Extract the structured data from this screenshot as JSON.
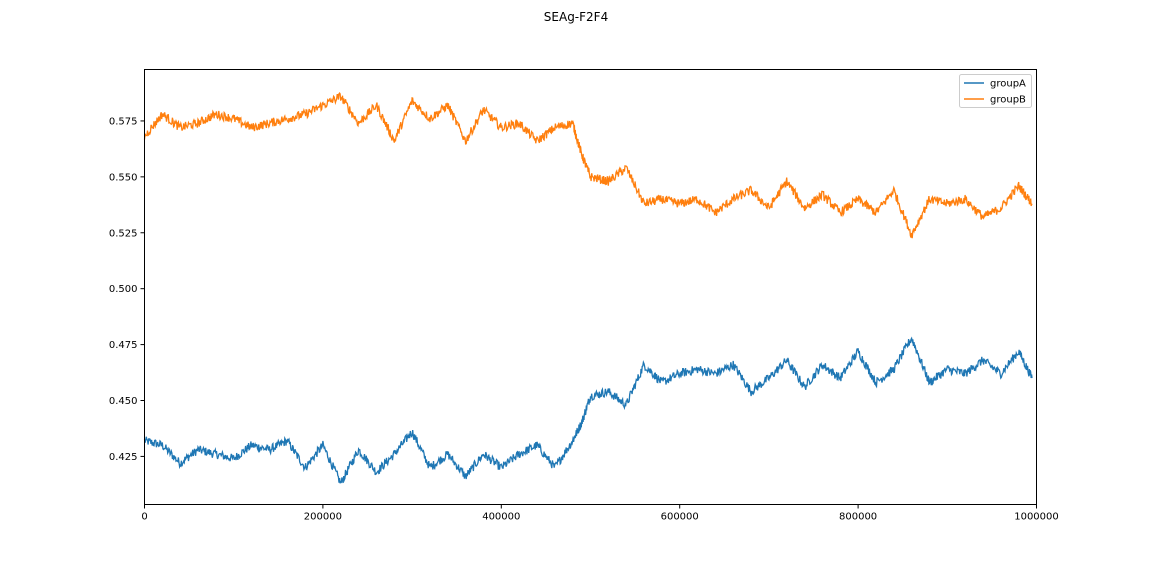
{
  "chart_data": {
    "type": "line",
    "title": "SEAg-F2F4",
    "xlabel": "",
    "ylabel": "",
    "xlim": [
      0,
      1000000
    ],
    "ylim": [
      0.4035,
      0.598
    ],
    "xticks": [
      0,
      200000,
      400000,
      600000,
      800000,
      1000000
    ],
    "xtick_labels": [
      "0",
      "200000",
      "400000",
      "600000",
      "800000",
      "1000000"
    ],
    "yticks": [
      0.425,
      0.45,
      0.475,
      0.5,
      0.525,
      0.55,
      0.575
    ],
    "ytick_labels": [
      "0.425",
      "0.450",
      "0.475",
      "0.500",
      "0.525",
      "0.550",
      "0.575"
    ],
    "grid": false,
    "legend_position": "upper-right",
    "series": [
      {
        "name": "groupA",
        "color": "#1f77b4",
        "x": [
          0,
          20000,
          40000,
          60000,
          80000,
          100000,
          120000,
          140000,
          160000,
          180000,
          200000,
          220000,
          240000,
          260000,
          280000,
          300000,
          320000,
          340000,
          360000,
          380000,
          400000,
          420000,
          440000,
          460000,
          480000,
          490000,
          500000,
          520000,
          540000,
          560000,
          580000,
          600000,
          620000,
          640000,
          660000,
          680000,
          700000,
          720000,
          740000,
          760000,
          780000,
          800000,
          820000,
          840000,
          860000,
          880000,
          900000,
          920000,
          940000,
          960000,
          980000,
          995000
        ],
        "y": [
          0.432,
          0.43,
          0.422,
          0.428,
          0.426,
          0.424,
          0.43,
          0.428,
          0.432,
          0.42,
          0.43,
          0.413,
          0.428,
          0.418,
          0.426,
          0.436,
          0.42,
          0.426,
          0.416,
          0.426,
          0.42,
          0.426,
          0.43,
          0.42,
          0.432,
          0.44,
          0.452,
          0.454,
          0.448,
          0.466,
          0.458,
          0.462,
          0.464,
          0.462,
          0.466,
          0.454,
          0.46,
          0.468,
          0.456,
          0.466,
          0.46,
          0.472,
          0.458,
          0.464,
          0.478,
          0.458,
          0.464,
          0.462,
          0.468,
          0.462,
          0.472,
          0.46
        ]
      },
      {
        "name": "groupB",
        "color": "#ff7f0e",
        "x": [
          0,
          20000,
          40000,
          60000,
          80000,
          100000,
          120000,
          140000,
          160000,
          180000,
          200000,
          220000,
          240000,
          260000,
          280000,
          300000,
          320000,
          340000,
          360000,
          380000,
          400000,
          420000,
          440000,
          460000,
          480000,
          490000,
          500000,
          520000,
          540000,
          560000,
          580000,
          600000,
          620000,
          640000,
          660000,
          680000,
          700000,
          720000,
          740000,
          760000,
          780000,
          800000,
          820000,
          840000,
          860000,
          880000,
          900000,
          920000,
          940000,
          960000,
          980000,
          995000
        ],
        "y": [
          0.568,
          0.578,
          0.572,
          0.574,
          0.578,
          0.576,
          0.572,
          0.574,
          0.576,
          0.578,
          0.582,
          0.586,
          0.574,
          0.582,
          0.566,
          0.584,
          0.576,
          0.582,
          0.566,
          0.58,
          0.572,
          0.574,
          0.566,
          0.572,
          0.574,
          0.56,
          0.55,
          0.548,
          0.554,
          0.538,
          0.54,
          0.538,
          0.54,
          0.534,
          0.54,
          0.544,
          0.536,
          0.548,
          0.536,
          0.542,
          0.534,
          0.54,
          0.534,
          0.544,
          0.524,
          0.54,
          0.538,
          0.54,
          0.532,
          0.536,
          0.546,
          0.538
        ]
      }
    ]
  }
}
